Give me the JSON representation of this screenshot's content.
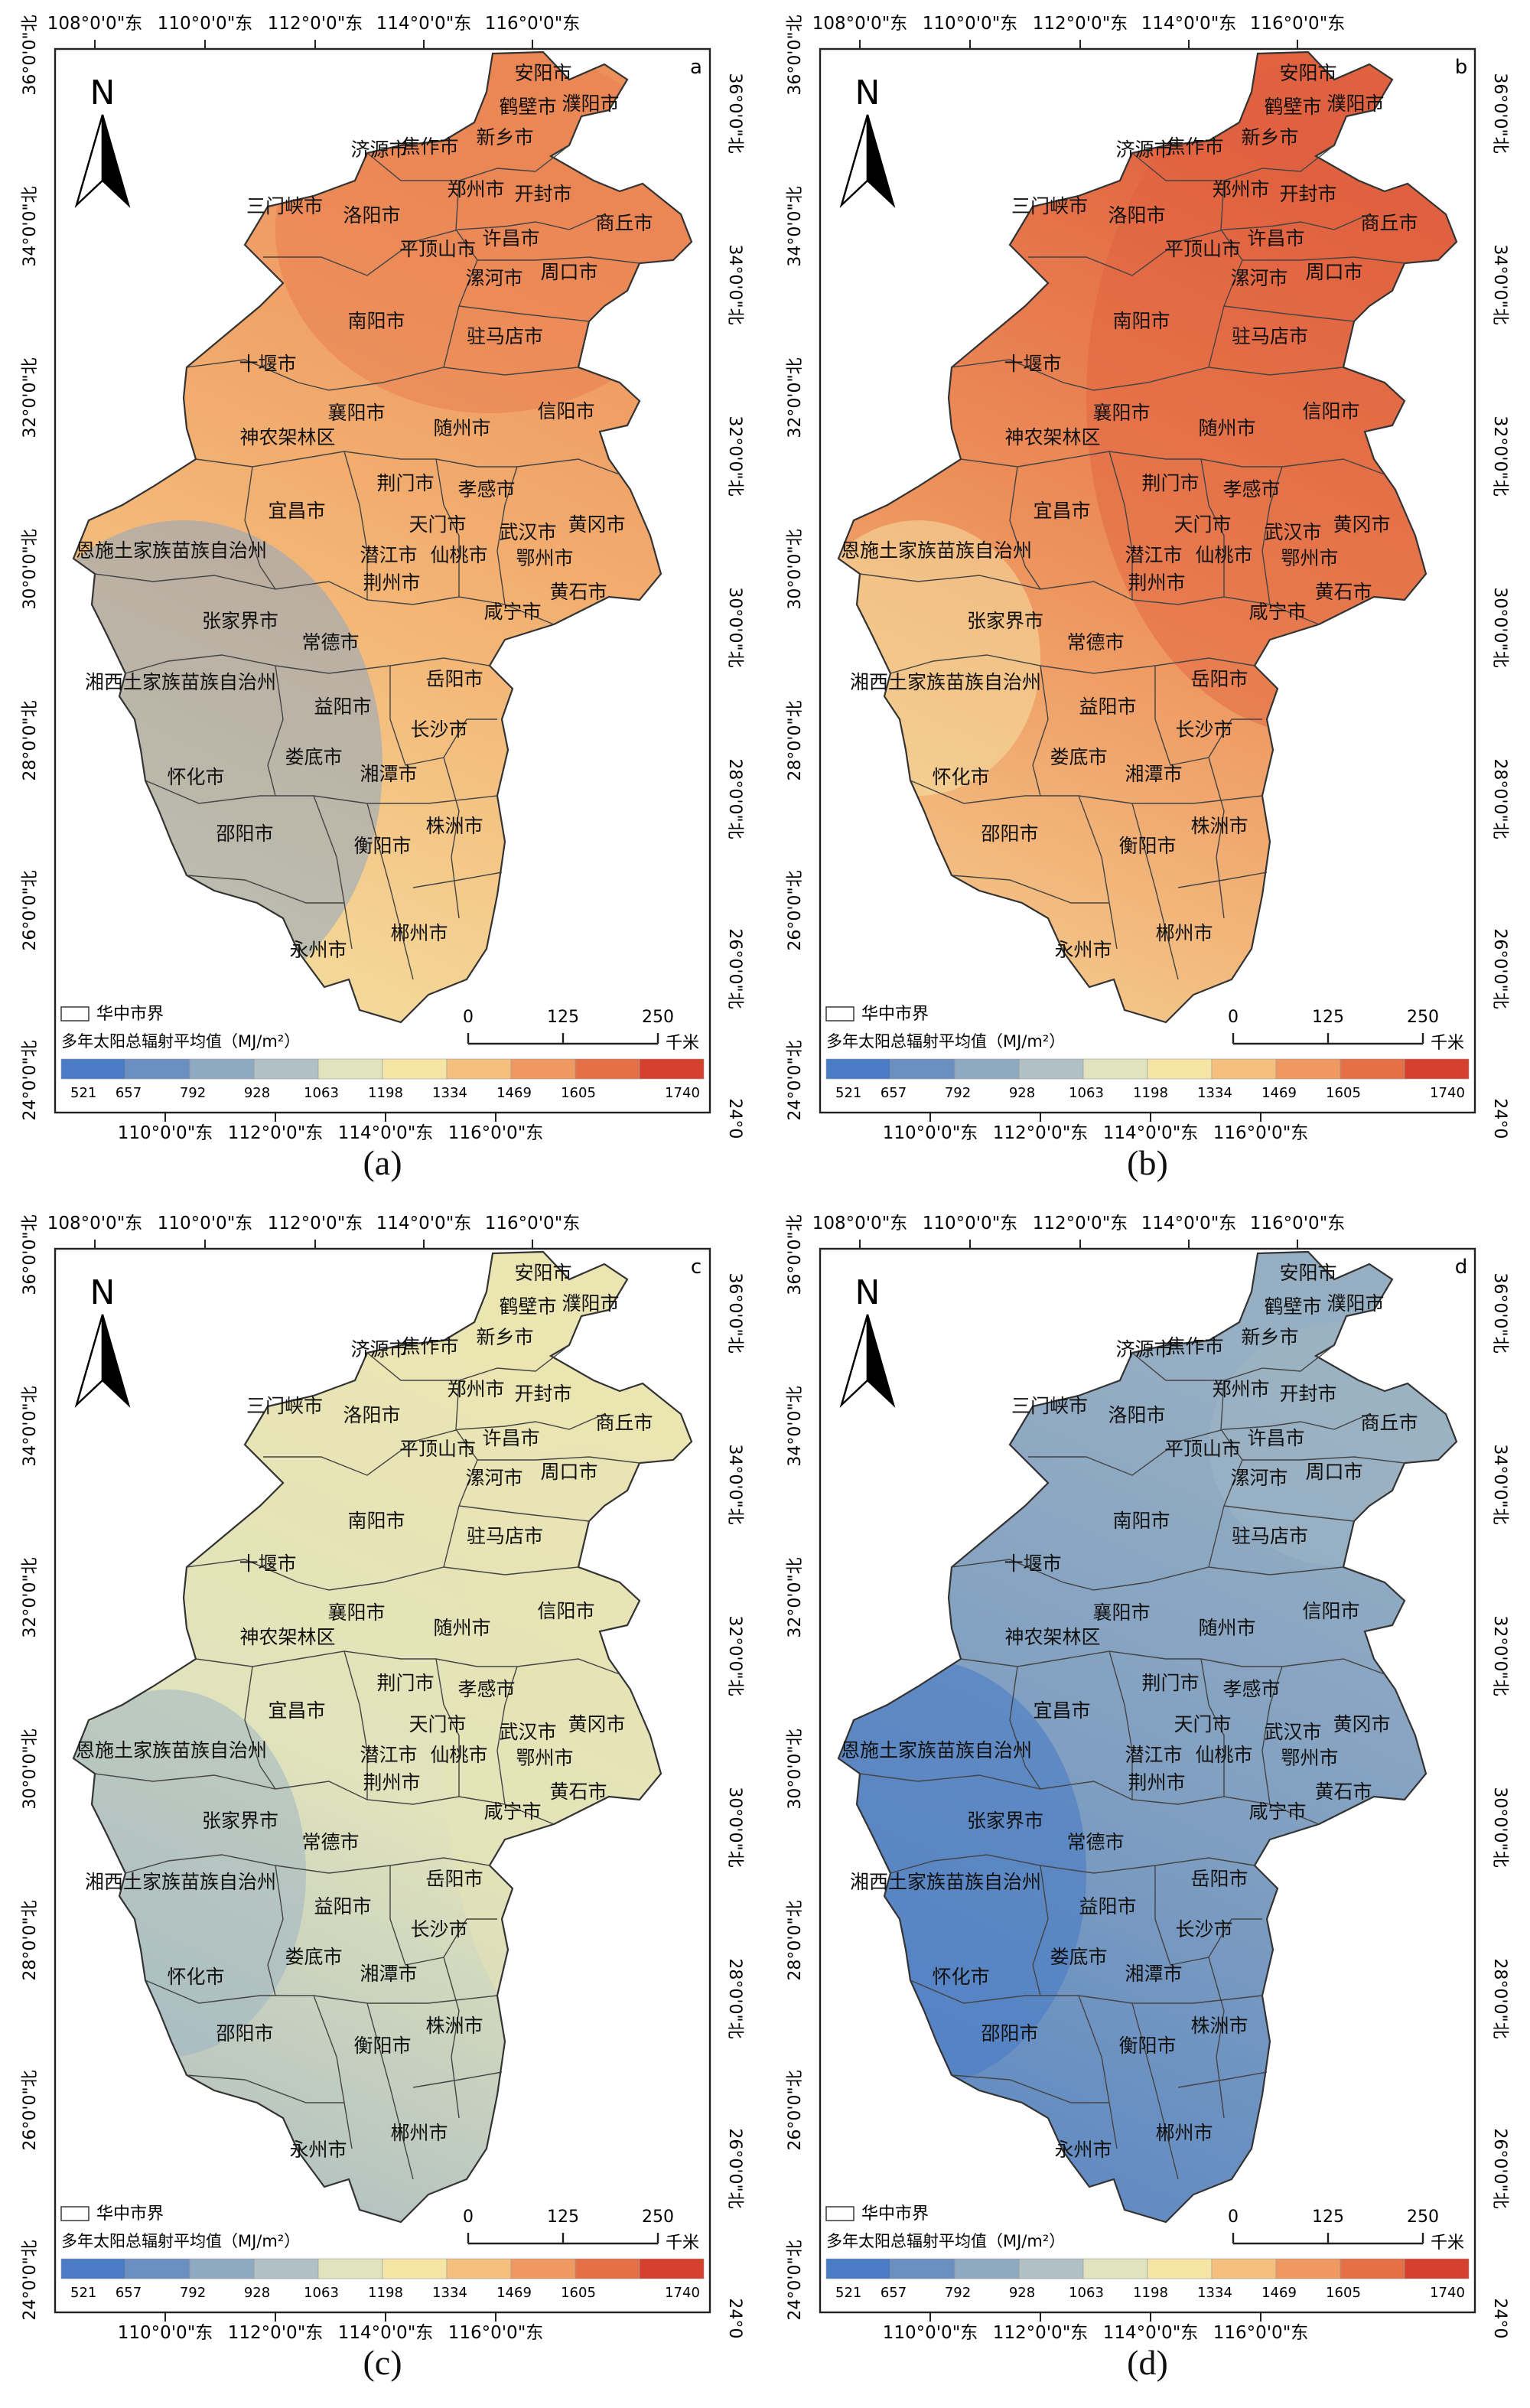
{
  "panels": [
    {
      "id": "a",
      "caption": "(a)",
      "letter": "a",
      "shade": [
        0.55,
        0.7,
        0.8
      ],
      "field": "north_hot"
    },
    {
      "id": "b",
      "caption": "(b)",
      "letter": "b",
      "shade": [
        0.6,
        0.8,
        0.92
      ],
      "field": "all_hot"
    },
    {
      "id": "c",
      "caption": "(c)",
      "letter": "c",
      "shade": [
        0.3,
        0.45,
        0.5
      ],
      "field": "mild"
    },
    {
      "id": "d",
      "caption": "(d)",
      "letter": "d",
      "shade": [
        0.05,
        0.18,
        0.25
      ],
      "field": "cool"
    }
  ],
  "lon_labels": [
    "108°0'0\"东",
    "110°0'0\"东",
    "112°0'0\"东",
    "114°0'0\"东",
    "116°0'0\"东"
  ],
  "lon_labels_bottom": [
    "110°0'0\"东",
    "112°0'0\"东",
    "114°0'0\"东",
    "116°0'0\"东"
  ],
  "lat_labels": [
    "36°0'0\"北",
    "34°0'0\"北",
    "32°0'0\"北",
    "30°0'0\"北",
    "28°0'0\"北",
    "26°0'0\"北",
    "24°0'0\"北"
  ],
  "north_letter": "N",
  "boundary_label": "华中市界",
  "legend_title": "多年太阳总辐射平均值（MJ/m²）",
  "scale": {
    "labels": [
      "0",
      "125",
      "250"
    ],
    "unit": "千米"
  },
  "colorbar": {
    "labels": [
      "521",
      "657",
      "792",
      "928",
      "1063",
      "1198",
      "1334",
      "1469",
      "1605",
      "1740"
    ],
    "colors": [
      "#4a7bc4",
      "#6a8fc0",
      "#8ea9c2",
      "#b0c0c4",
      "#e0e3bd",
      "#f6e6a6",
      "#f5bf7d",
      "#ef9960",
      "#e57047",
      "#d6412f"
    ]
  },
  "cities": [
    {
      "name": "安阳市"
    },
    {
      "name": "鹤壁市"
    },
    {
      "name": "濮阳市"
    },
    {
      "name": "新乡市"
    },
    {
      "name": "济源市"
    },
    {
      "name": "焦作市"
    },
    {
      "name": "三门峡市"
    },
    {
      "name": "洛阳市"
    },
    {
      "name": "郑州市"
    },
    {
      "name": "开封市"
    },
    {
      "name": "商丘市"
    },
    {
      "name": "平顶山市"
    },
    {
      "name": "许昌市"
    },
    {
      "name": "漯河市"
    },
    {
      "name": "周口市"
    },
    {
      "name": "南阳市"
    },
    {
      "name": "驻马店市"
    },
    {
      "name": "十堰市"
    },
    {
      "name": "襄阳市"
    },
    {
      "name": "随州市"
    },
    {
      "name": "信阳市"
    },
    {
      "name": "神农架林区"
    },
    {
      "name": "宜昌市"
    },
    {
      "name": "荆门市"
    },
    {
      "name": "孝感市"
    },
    {
      "name": "天门市"
    },
    {
      "name": "武汉市"
    },
    {
      "name": "黄冈市"
    },
    {
      "name": "恩施土家族苗族自治州"
    },
    {
      "name": "潜江市"
    },
    {
      "name": "仙桃市"
    },
    {
      "name": "鄂州市"
    },
    {
      "name": "荆州市"
    },
    {
      "name": "黄石市"
    },
    {
      "name": "咸宁市"
    },
    {
      "name": "张家界市"
    },
    {
      "name": "常德市"
    },
    {
      "name": "岳阳市"
    },
    {
      "name": "湘西土家族苗族自治州"
    },
    {
      "name": "益阳市"
    },
    {
      "name": "长沙市"
    },
    {
      "name": "娄底市"
    },
    {
      "name": "怀化市"
    },
    {
      "name": "湘潭市"
    },
    {
      "name": "邵阳市"
    },
    {
      "name": "衡阳市"
    },
    {
      "name": "株洲市"
    },
    {
      "name": "郴州市"
    },
    {
      "name": "永州市"
    }
  ]
}
